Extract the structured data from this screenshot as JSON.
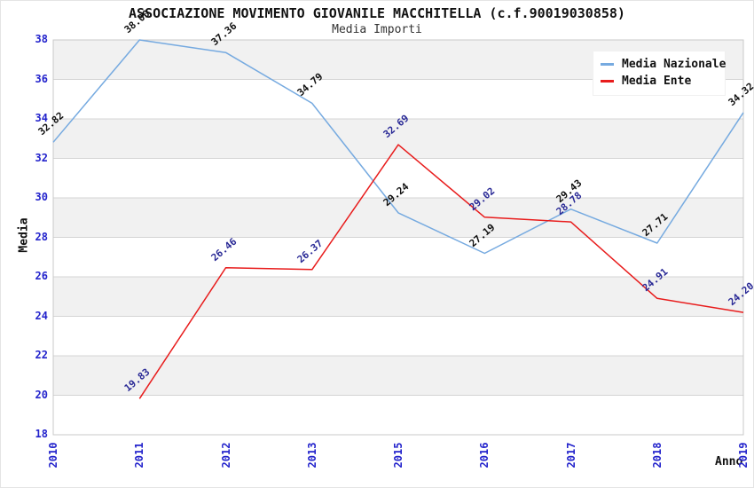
{
  "chart_data": {
    "type": "line",
    "title": "ASSOCIAZIONE MOVIMENTO GIOVANILE MACCHITELLA (c.f.90019030858)",
    "subtitle": "Media Importi",
    "xlabel": "Anno",
    "ylabel": "Media",
    "categories": [
      "2010",
      "2011",
      "2012",
      "2013",
      "2015",
      "2016",
      "2017",
      "2018",
      "2019"
    ],
    "series": [
      {
        "name": "Media Nazionale",
        "color": "#76aae0",
        "label_color": "#111111",
        "values": [
          32.82,
          38.0,
          37.36,
          34.79,
          29.24,
          27.19,
          29.43,
          27.71,
          34.32
        ]
      },
      {
        "name": "Media Ente",
        "color": "#e81c1c",
        "label_color": "#2a2a96",
        "values": [
          null,
          19.83,
          26.46,
          26.37,
          32.69,
          29.02,
          28.78,
          24.91,
          24.2
        ]
      }
    ],
    "ylim": [
      18,
      38
    ],
    "ytick_step": 2,
    "yticks": [
      18,
      20,
      22,
      24,
      26,
      28,
      30,
      32,
      34,
      36,
      38
    ],
    "grid": true,
    "band_fill": "#f1f1f1",
    "grid_color": "#d4d4d4",
    "frame_color": "#c9c9c9",
    "tick_label_color": "#2323cc",
    "legend_position": "top-right",
    "value_label_decimals": 2
  }
}
